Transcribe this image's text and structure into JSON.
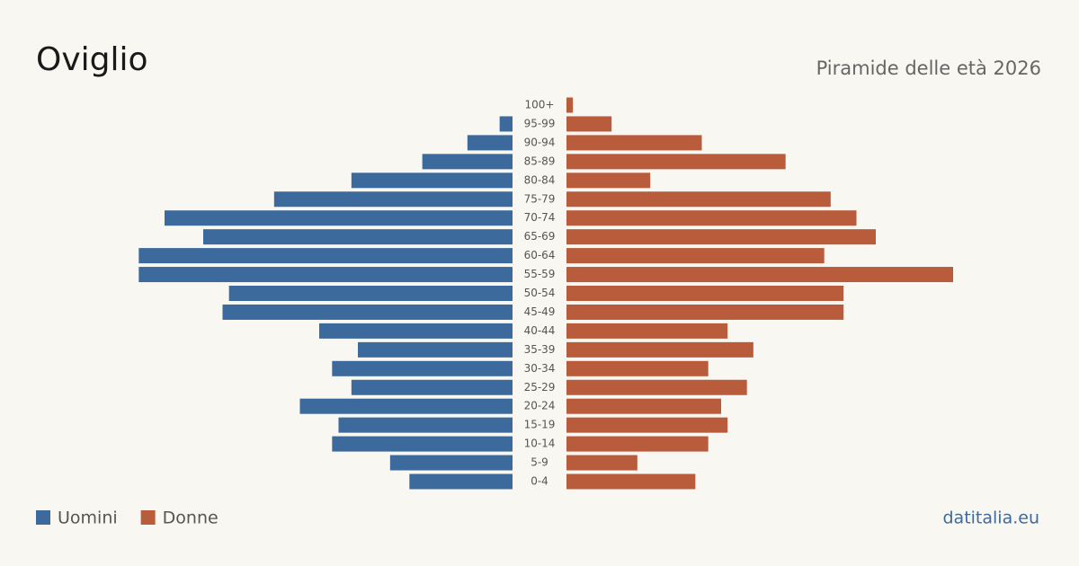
{
  "chart_data": {
    "type": "pyramid",
    "title": "Oviglio",
    "subtitle": "Piramide delle età 2026",
    "source": "datitalia.eu",
    "categories": [
      "100+",
      "95-99",
      "90-94",
      "85-89",
      "80-84",
      "75-79",
      "70-74",
      "65-69",
      "60-64",
      "55-59",
      "50-54",
      "45-49",
      "40-44",
      "35-39",
      "30-34",
      "25-29",
      "20-24",
      "15-19",
      "10-14",
      "5-9",
      "0-4"
    ],
    "series": [
      {
        "name": "Uomini",
        "color": "#3d6a9c",
        "values": [
          0,
          2,
          7,
          14,
          25,
          37,
          54,
          48,
          58,
          58,
          44,
          45,
          30,
          24,
          28,
          25,
          33,
          27,
          28,
          19,
          16
        ]
      },
      {
        "name": "Donne",
        "color": "#b85c3c",
        "values": [
          1,
          7,
          21,
          34,
          13,
          41,
          45,
          48,
          40,
          60,
          43,
          43,
          25,
          29,
          22,
          28,
          24,
          25,
          22,
          11,
          20
        ]
      }
    ]
  }
}
